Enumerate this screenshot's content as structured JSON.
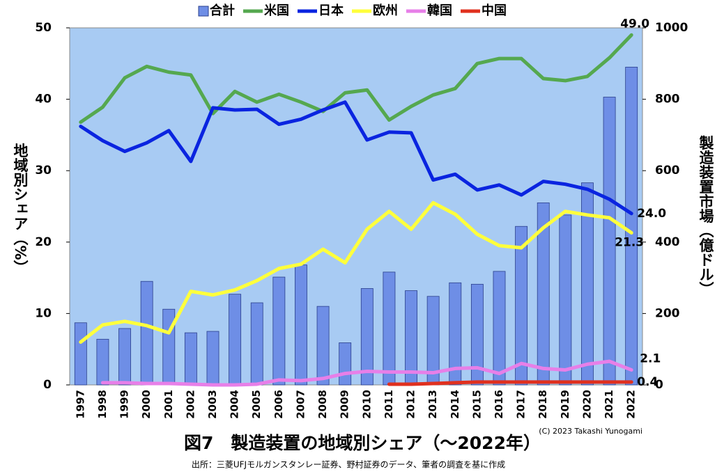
{
  "chart_data": {
    "type": "combo",
    "title": "図7　製造装置の地域別シェア（～2022年）",
    "subtitle": "出所：三菱UFJモルガンスタンレー証券、野村証券のデータ、筆者の調査を基に作成",
    "credit": "(C) 2023 Takashi Yunogami",
    "y_label": "地域別シェア（%）",
    "y2_label": "製造装置市場（億ドル）",
    "categories": [
      "1997",
      "1998",
      "1999",
      "2000",
      "2001",
      "2002",
      "2003",
      "2004",
      "2005",
      "2006",
      "2007",
      "2008",
      "2009",
      "2010",
      "2011",
      "2012",
      "2013",
      "2014",
      "2015",
      "2016",
      "2017",
      "2018",
      "2019",
      "2020",
      "2021",
      "2022"
    ],
    "ylim": [
      0,
      50
    ],
    "yticks": [
      0,
      10,
      20,
      30,
      40,
      50
    ],
    "y2lim": [
      0,
      1000
    ],
    "y2ticks": [
      0,
      200,
      400,
      600,
      800,
      1000
    ],
    "plot_background": "#a8cbf3",
    "legend": "top",
    "series": [
      {
        "name": "合計",
        "type": "bar",
        "axis": "y2",
        "color": "#6e8ee6",
        "values": [
          174,
          128,
          158,
          290,
          212,
          146,
          150,
          254,
          230,
          302,
          336,
          220,
          118,
          270,
          316,
          264,
          248,
          286,
          282,
          318,
          444,
          510,
          476,
          566,
          806,
          890
        ]
      },
      {
        "name": "米国",
        "type": "line",
        "color": "#55a84f",
        "values": [
          36.8,
          38.9,
          43.0,
          44.6,
          43.8,
          43.4,
          38.0,
          41.1,
          39.6,
          40.7,
          39.6,
          38.3,
          40.9,
          41.3,
          37.1,
          39.0,
          40.6,
          41.5,
          45.0,
          45.7,
          45.7,
          42.9,
          42.6,
          43.2,
          45.8,
          49.0
        ],
        "value_labels": [
          null,
          null,
          null,
          null,
          null,
          null,
          null,
          null,
          null,
          null,
          null,
          null,
          null,
          null,
          null,
          null,
          null,
          null,
          null,
          null,
          null,
          null,
          null,
          null,
          null,
          "49.0"
        ]
      },
      {
        "name": "日本",
        "type": "line",
        "color": "#0a24e0",
        "values": [
          36.2,
          34.2,
          32.7,
          33.9,
          35.6,
          31.3,
          38.8,
          38.5,
          38.6,
          36.5,
          37.2,
          38.5,
          39.6,
          34.3,
          35.4,
          35.3,
          28.7,
          29.5,
          27.3,
          28.0,
          26.6,
          28.5,
          28.1,
          27.4,
          26.0,
          24.0
        ],
        "value_labels": [
          null,
          null,
          null,
          null,
          null,
          null,
          null,
          null,
          null,
          null,
          null,
          null,
          null,
          null,
          null,
          null,
          null,
          null,
          null,
          null,
          null,
          null,
          null,
          null,
          null,
          "24.0"
        ]
      },
      {
        "name": "欧州",
        "type": "line",
        "color": "#ffff3c",
        "values": [
          6.0,
          8.4,
          8.9,
          8.3,
          7.3,
          13.1,
          12.6,
          13.3,
          14.6,
          16.3,
          16.9,
          19.0,
          17.1,
          21.8,
          24.3,
          21.8,
          25.5,
          23.9,
          21.1,
          19.5,
          19.2,
          22.0,
          24.3,
          23.8,
          23.4,
          21.3
        ],
        "value_labels": [
          null,
          null,
          null,
          null,
          null,
          null,
          null,
          null,
          null,
          null,
          null,
          null,
          null,
          null,
          null,
          null,
          null,
          null,
          null,
          null,
          null,
          null,
          null,
          null,
          null,
          "21.3"
        ]
      },
      {
        "name": "韓国",
        "type": "line",
        "color": "#e77fe8",
        "values": [
          null,
          0.3,
          0.3,
          0.2,
          0.2,
          0.1,
          0.0,
          0.0,
          0.1,
          0.7,
          0.6,
          0.9,
          1.6,
          1.9,
          1.8,
          1.8,
          1.7,
          2.3,
          2.4,
          1.6,
          3.0,
          2.3,
          2.1,
          2.9,
          3.3,
          2.1
        ],
        "value_labels": [
          null,
          null,
          null,
          null,
          null,
          null,
          null,
          null,
          null,
          null,
          null,
          null,
          null,
          null,
          null,
          null,
          null,
          null,
          null,
          null,
          null,
          null,
          null,
          null,
          null,
          "2.1"
        ]
      },
      {
        "name": "中国",
        "type": "line",
        "color": "#e0301e",
        "values": [
          null,
          null,
          null,
          null,
          null,
          null,
          null,
          null,
          null,
          null,
          null,
          null,
          null,
          null,
          0.1,
          0.1,
          0.2,
          0.3,
          0.4,
          0.4,
          0.4,
          0.4,
          0.4,
          0.4,
          0.4,
          0.4
        ],
        "value_labels": [
          null,
          null,
          null,
          null,
          null,
          null,
          null,
          null,
          null,
          null,
          null,
          null,
          null,
          null,
          null,
          null,
          null,
          null,
          null,
          null,
          null,
          null,
          null,
          null,
          null,
          "0.4"
        ]
      }
    ]
  }
}
